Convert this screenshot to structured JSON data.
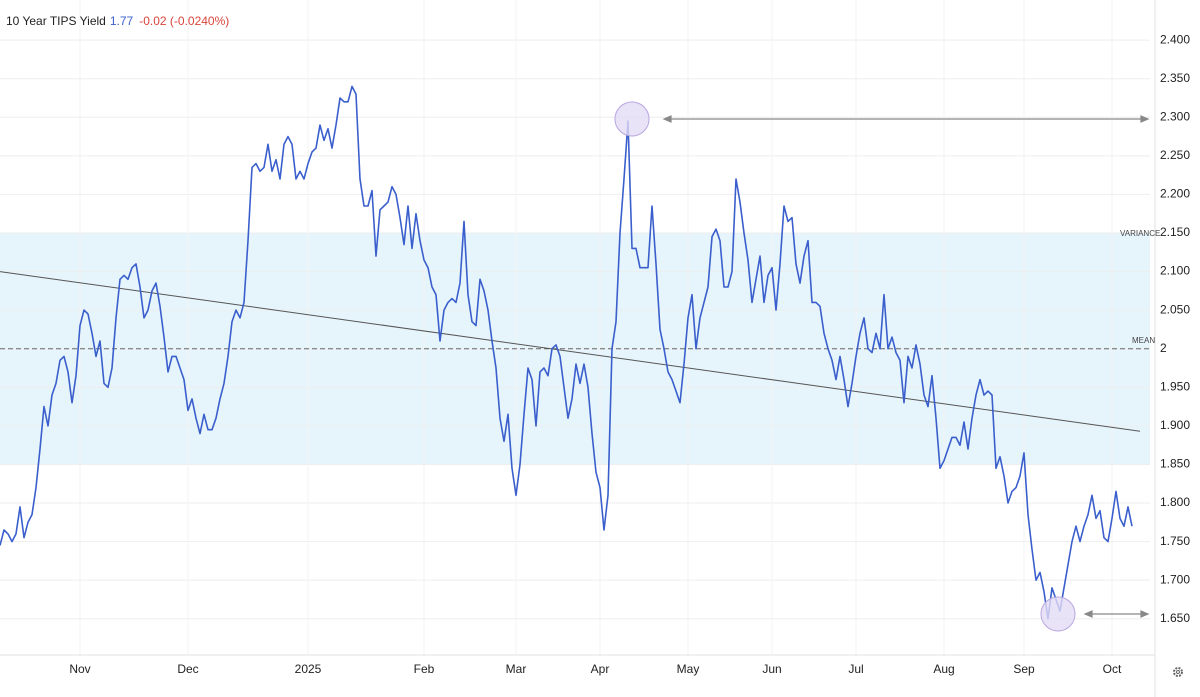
{
  "chart_data": {
    "type": "line",
    "title": "10 Year TIPS Yield",
    "last_value": "1.77",
    "change": "-0.02 (-0.0240%)",
    "series": [
      {
        "name": "10 Year TIPS Yield",
        "color": "#3a5fcd",
        "values": [
          1.745,
          1.765,
          1.76,
          1.75,
          1.76,
          1.795,
          1.755,
          1.775,
          1.785,
          1.82,
          1.87,
          1.925,
          1.9,
          1.94,
          1.955,
          1.985,
          1.99,
          1.97,
          1.93,
          1.965,
          2.03,
          2.05,
          2.045,
          2.02,
          1.99,
          2.01,
          1.955,
          1.95,
          1.975,
          2.04,
          2.09,
          2.095,
          2.09,
          2.105,
          2.11,
          2.08,
          2.04,
          2.05,
          2.075,
          2.085,
          2.055,
          2.015,
          1.97,
          1.99,
          1.99,
          1.975,
          1.96,
          1.92,
          1.935,
          1.91,
          1.89,
          1.915,
          1.895,
          1.895,
          1.91,
          1.935,
          1.955,
          1.99,
          2.035,
          2.05,
          2.04,
          2.06,
          2.14,
          2.235,
          2.24,
          2.23,
          2.235,
          2.265,
          2.23,
          2.245,
          2.22,
          2.265,
          2.275,
          2.265,
          2.22,
          2.23,
          2.22,
          2.24,
          2.255,
          2.26,
          2.29,
          2.27,
          2.285,
          2.26,
          2.29,
          2.325,
          2.32,
          2.32,
          2.34,
          2.33,
          2.22,
          2.185,
          2.185,
          2.205,
          2.12,
          2.18,
          2.185,
          2.19,
          2.21,
          2.2,
          2.17,
          2.135,
          2.185,
          2.13,
          2.175,
          2.14,
          2.115,
          2.105,
          2.08,
          2.07,
          2.01,
          2.05,
          2.06,
          2.065,
          2.06,
          2.085,
          2.165,
          2.07,
          2.035,
          2.03,
          2.09,
          2.075,
          2.05,
          2.01,
          1.975,
          1.91,
          1.88,
          1.915,
          1.845,
          1.81,
          1.85,
          1.915,
          1.975,
          1.96,
          1.9,
          1.97,
          1.975,
          1.965,
          2.0,
          2.005,
          1.99,
          1.95,
          1.91,
          1.935,
          1.98,
          1.955,
          1.98,
          1.95,
          1.89,
          1.84,
          1.82,
          1.765,
          1.81,
          2.0,
          2.035,
          2.15,
          2.22,
          2.295,
          2.13,
          2.13,
          2.105,
          2.105,
          2.105,
          2.185,
          2.11,
          2.025,
          2.0,
          1.97,
          1.96,
          1.945,
          1.93,
          1.98,
          2.04,
          2.07,
          2.0,
          2.04,
          2.06,
          2.08,
          2.145,
          2.155,
          2.14,
          2.08,
          2.08,
          2.1,
          2.22,
          2.19,
          2.15,
          2.115,
          2.06,
          2.09,
          2.12,
          2.06,
          2.095,
          2.105,
          2.05,
          2.11,
          2.185,
          2.165,
          2.17,
          2.11,
          2.085,
          2.12,
          2.14,
          2.06,
          2.06,
          2.055,
          2.02,
          2.0,
          1.985,
          1.96,
          1.99,
          1.96,
          1.925,
          1.955,
          1.99,
          2.02,
          2.04,
          2.0,
          1.995,
          2.02,
          2.0,
          2.07,
          2.0,
          2.015,
          1.995,
          1.985,
          1.93,
          1.99,
          1.975,
          2.005,
          1.98,
          1.94,
          1.925,
          1.965,
          1.91,
          1.845,
          1.855,
          1.87,
          1.885,
          1.885,
          1.875,
          1.905,
          1.87,
          1.91,
          1.94,
          1.96,
          1.94,
          1.945,
          1.94,
          1.845,
          1.86,
          1.835,
          1.8,
          1.815,
          1.82,
          1.835,
          1.865,
          1.785,
          1.74,
          1.7,
          1.71,
          1.685,
          1.65,
          1.69,
          1.675,
          1.66,
          1.69,
          1.72,
          1.75,
          1.77,
          1.75,
          1.77,
          1.785,
          1.81,
          1.78,
          1.79,
          1.755,
          1.75,
          1.78,
          1.815,
          1.78,
          1.77,
          1.795,
          1.77
        ]
      }
    ],
    "xlim": [
      0,
      287.5
    ],
    "xticks": [
      {
        "value": 20,
        "label": "Nov"
      },
      {
        "value": 47,
        "label": "Dec"
      },
      {
        "value": 77,
        "label": "2025"
      },
      {
        "value": 106,
        "label": "Feb"
      },
      {
        "value": 129,
        "label": "Mar"
      },
      {
        "value": 150,
        "label": "Apr"
      },
      {
        "value": 172,
        "label": "May"
      },
      {
        "value": 193,
        "label": "Jun"
      },
      {
        "value": 214,
        "label": "Jul"
      },
      {
        "value": 236,
        "label": "Aug"
      },
      {
        "value": 256,
        "label": "Sep"
      },
      {
        "value": 278,
        "label": "Oct"
      }
    ],
    "ylim": [
      1.603,
      2.452
    ],
    "yticks": [
      {
        "value": 2.4,
        "label": "2.400"
      },
      {
        "value": 2.35,
        "label": "2.350"
      },
      {
        "value": 2.3,
        "label": "2.300"
      },
      {
        "value": 2.25,
        "label": "2.250"
      },
      {
        "value": 2.2,
        "label": "2.200"
      },
      {
        "value": 2.15,
        "label": "2.150"
      },
      {
        "value": 2.1,
        "label": "2.100"
      },
      {
        "value": 2.05,
        "label": "2.050"
      },
      2,
      {
        "value": 1.95,
        "label": "1.950"
      },
      {
        "value": 1.9,
        "label": "1.900"
      },
      {
        "value": 1.85,
        "label": "1.850"
      },
      {
        "value": 1.8,
        "label": "1.800"
      },
      {
        "value": 1.75,
        "label": "1.750"
      },
      {
        "value": 1.7,
        "label": "1.700"
      },
      {
        "value": 1.65,
        "label": "1.650"
      }
    ],
    "variance_band": {
      "label": "VARIANCE",
      "low": 1.85,
      "high": 2.15,
      "color": "#e6f4fb"
    },
    "mean_line": {
      "label": "MEAN",
      "value": 2
    },
    "trend_line": {
      "start": 2.1,
      "end": 1.893,
      "color": "#555555"
    },
    "grid": true
  }
}
